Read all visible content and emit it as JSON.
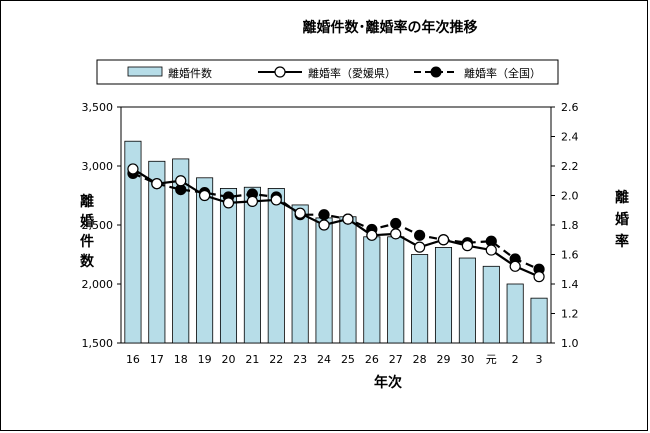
{
  "chart_data": {
    "type": "bar+line",
    "title": "離婚件数･離婚率の年次推移",
    "xlabel": "年次",
    "ylabel_left": "離婚件数",
    "ylabel_right": "離婚率",
    "categories": [
      "16",
      "17",
      "18",
      "19",
      "20",
      "21",
      "22",
      "23",
      "24",
      "25",
      "26",
      "27",
      "28",
      "29",
      "30",
      "元",
      "2",
      "3"
    ],
    "ylim_left": [
      1500,
      3500
    ],
    "yticks_left": [
      "1,500",
      "2,000",
      "2,500",
      "3,000",
      "3,500"
    ],
    "ylim_right": [
      1.0,
      2.6
    ],
    "yticks_right": [
      "1.0",
      "1.2",
      "1.4",
      "1.6",
      "1.8",
      "2.0",
      "2.2",
      "2.4",
      "2.6"
    ],
    "series": [
      {
        "name": "離婚件数",
        "kind": "bar",
        "axis": "left",
        "values": [
          3210,
          3040,
          3060,
          2900,
          2810,
          2820,
          2810,
          2670,
          2560,
          2570,
          2400,
          2400,
          2250,
          2310,
          2220,
          2150,
          2000,
          1880
        ]
      },
      {
        "name": "離婚率（愛媛県）",
        "kind": "line",
        "axis": "right",
        "marker": "open-circle",
        "values": [
          2.18,
          2.08,
          2.1,
          2.0,
          1.95,
          1.96,
          1.97,
          1.88,
          1.8,
          1.84,
          1.73,
          1.74,
          1.65,
          1.7,
          1.66,
          1.63,
          1.52,
          1.45
        ]
      },
      {
        "name": "離婚率（全国）",
        "kind": "dashed-line",
        "axis": "right",
        "marker": "filled-circle",
        "values": [
          2.15,
          2.08,
          2.04,
          2.02,
          1.99,
          2.01,
          1.99,
          1.87,
          1.87,
          1.84,
          1.77,
          1.81,
          1.73,
          1.7,
          1.68,
          1.69,
          1.57,
          1.5
        ]
      }
    ],
    "colors": {
      "bar_fill": "#b7dde8",
      "stroke": "#000000",
      "open_marker_fill": "#ffffff",
      "filled_marker_fill": "#000000"
    },
    "legend": [
      "離婚件数",
      "離婚率（愛媛県）",
      "離婚率（全国）"
    ]
  }
}
